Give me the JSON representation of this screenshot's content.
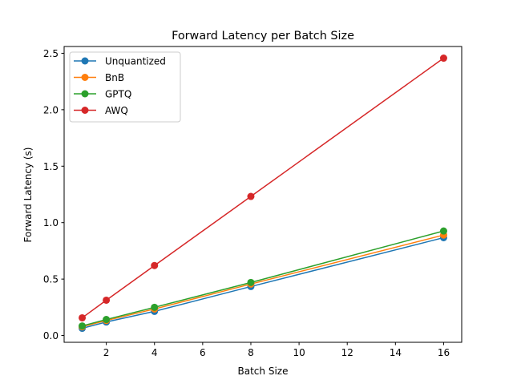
{
  "chart_data": {
    "type": "line",
    "title": "Forward Latency per Batch Size",
    "xlabel": "Batch Size",
    "ylabel": "Forward Latency (s)",
    "xlim": [
      0.25,
      16.75
    ],
    "ylim": [
      -0.06,
      2.56
    ],
    "xticks": [
      2,
      4,
      6,
      8,
      10,
      12,
      14,
      16
    ],
    "yticks": [
      0.0,
      0.5,
      1.0,
      1.5,
      2.0,
      2.5
    ],
    "ytick_labels": [
      "0.0",
      "0.5",
      "1.0",
      "1.5",
      "2.0",
      "2.5"
    ],
    "grid": false,
    "legend_placement": "upper-left",
    "x": [
      1,
      2,
      4,
      8,
      16
    ],
    "series": [
      {
        "name": "Unquantized",
        "color": "#1f77b4",
        "values": [
          0.064,
          0.12,
          0.214,
          0.434,
          0.867
        ]
      },
      {
        "name": "BnB",
        "color": "#ff7f0e",
        "values": [
          0.078,
          0.133,
          0.235,
          0.456,
          0.89
        ]
      },
      {
        "name": "GPTQ",
        "color": "#2ca02c",
        "values": [
          0.085,
          0.142,
          0.25,
          0.47,
          0.926
        ]
      },
      {
        "name": "AWQ",
        "color": "#d62728",
        "values": [
          0.157,
          0.313,
          0.62,
          1.232,
          2.457
        ]
      }
    ]
  }
}
